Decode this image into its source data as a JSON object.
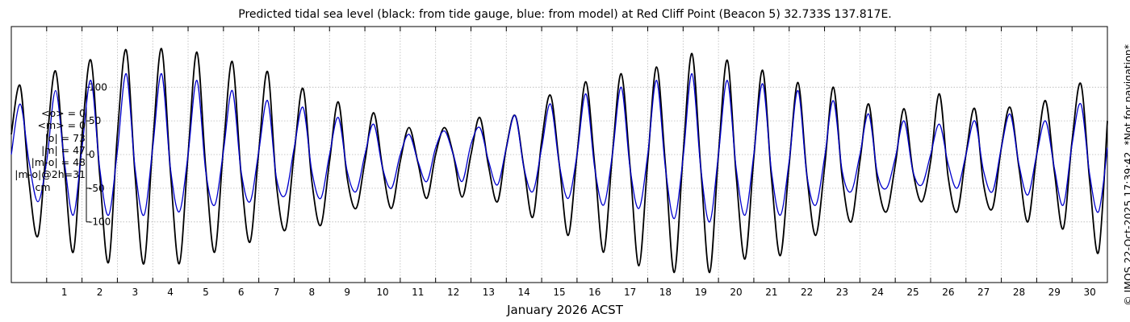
{
  "title": "Predicted tidal sea level (black: from tide gauge, blue: from model) at Red Cliff Point (Beacon 5) 32.733S 137.817E.",
  "stats": [
    "<o> = 0",
    "<m> = 0",
    "|o| = 73",
    "|m| = 47",
    "|m-o| = 48",
    "|m-o|@2h=31"
  ],
  "unit": "cm",
  "credit": "© IMOS 22-Oct-2025 17:39:42. *Not for navigation*",
  "chart_data": {
    "type": "line",
    "xlabel": "January 2026 ACST",
    "ylabel": "",
    "xlim": [
      0.0,
      31.0
    ],
    "ylim": [
      -190,
      190
    ],
    "x_ticks": [
      1,
      2,
      3,
      4,
      5,
      6,
      7,
      8,
      9,
      10,
      11,
      12,
      13,
      14,
      15,
      16,
      17,
      18,
      19,
      20,
      21,
      22,
      23,
      24,
      25,
      26,
      27,
      28,
      29,
      30
    ],
    "y_ticks": [
      -100,
      -50,
      0,
      50,
      100
    ],
    "grid": true,
    "series": [
      {
        "name": "tide gauge",
        "color": "#000000",
        "x": [
          0.0,
          0.25,
          0.5,
          0.75,
          1.0,
          1.25,
          1.5,
          1.75,
          2.0,
          2.25,
          2.5,
          2.75,
          3.0,
          3.25,
          3.5,
          3.75,
          4.0,
          4.25,
          4.5,
          4.75,
          5.0,
          5.25,
          5.5,
          5.75,
          6.0,
          6.25,
          6.5,
          6.75,
          7.0,
          7.25,
          7.5,
          7.75,
          8.0,
          8.25,
          8.5,
          8.75,
          9.0,
          9.25,
          9.5,
          9.75,
          10.0,
          10.25,
          10.5,
          10.75,
          11.0,
          11.25,
          11.5,
          11.75,
          12.0,
          12.25,
          12.5,
          12.75,
          13.0,
          13.25,
          13.5,
          13.75,
          14.0,
          14.25,
          14.5,
          14.75,
          15.0,
          15.25,
          15.5,
          15.75,
          16.0,
          16.25,
          16.5,
          16.75,
          17.0,
          17.25,
          17.5,
          17.75,
          18.0,
          18.25,
          18.5,
          18.75,
          19.0,
          19.25,
          19.5,
          19.75,
          20.0,
          20.25,
          20.5,
          20.75,
          21.0,
          21.25,
          21.5,
          21.75,
          22.0,
          22.25,
          22.5,
          22.75,
          23.0,
          23.25,
          23.5,
          23.75,
          24.0,
          24.25,
          24.5,
          24.75,
          25.0,
          25.25,
          25.5,
          25.75,
          26.0,
          26.25,
          26.5,
          26.75,
          27.0,
          27.25,
          27.5,
          27.75,
          28.0,
          28.25,
          28.5,
          28.75,
          29.0,
          29.25,
          29.5,
          29.75,
          30.0,
          30.25,
          30.5,
          30.75,
          31.0
        ],
        "values": [
          30,
          102,
          -40,
          -121,
          15,
          124,
          -18,
          -145,
          27,
          140,
          -30,
          -160,
          30,
          155,
          -30,
          -162,
          15,
          157,
          -25,
          -162,
          0,
          152,
          -20,
          -145,
          10,
          138,
          -30,
          -130,
          5,
          123,
          -45,
          -112,
          2,
          98,
          -40,
          -105,
          -10,
          78,
          -35,
          -80,
          -10,
          62,
          -20,
          -80,
          -10,
          40,
          -12,
          -65,
          0,
          40,
          0,
          -63,
          0,
          55,
          -18,
          -70,
          10,
          58,
          -20,
          -93,
          20,
          88,
          -15,
          -120,
          0,
          108,
          -15,
          -145,
          0,
          120,
          -18,
          -165,
          -10,
          130,
          -15,
          -175,
          0,
          150,
          -20,
          -175,
          0,
          140,
          -30,
          -155,
          -5,
          125,
          -35,
          -150,
          -15,
          107,
          -30,
          -120,
          -20,
          100,
          -35,
          -100,
          -10,
          75,
          -40,
          -85,
          -15,
          68,
          -25,
          -70,
          -10,
          90,
          -35,
          -85,
          0,
          68,
          -45,
          -80,
          10,
          70,
          -20,
          -100,
          0,
          80,
          -25,
          -110,
          20,
          105,
          -40,
          -145,
          50
        ]
      },
      {
        "name": "model",
        "color": "#0000cc",
        "x": [
          0.0,
          0.25,
          0.5,
          0.75,
          1.0,
          1.25,
          1.5,
          1.75,
          2.0,
          2.25,
          2.5,
          2.75,
          3.0,
          3.25,
          3.5,
          3.75,
          4.0,
          4.25,
          4.5,
          4.75,
          5.0,
          5.25,
          5.5,
          5.75,
          6.0,
          6.25,
          6.5,
          6.75,
          7.0,
          7.25,
          7.5,
          7.75,
          8.0,
          8.25,
          8.5,
          8.75,
          9.0,
          9.25,
          9.5,
          9.75,
          10.0,
          10.25,
          10.5,
          10.75,
          11.0,
          11.25,
          11.5,
          11.75,
          12.0,
          12.25,
          12.5,
          12.75,
          13.0,
          13.25,
          13.5,
          13.75,
          14.0,
          14.25,
          14.5,
          14.75,
          15.0,
          15.25,
          15.5,
          15.75,
          16.0,
          16.25,
          16.5,
          16.75,
          17.0,
          17.25,
          17.5,
          17.75,
          18.0,
          18.25,
          18.5,
          18.75,
          19.0,
          19.25,
          19.5,
          19.75,
          20.0,
          20.25,
          20.5,
          20.75,
          21.0,
          21.25,
          21.5,
          21.75,
          22.0,
          22.25,
          22.5,
          22.75,
          23.0,
          23.25,
          23.5,
          23.75,
          24.0,
          24.25,
          24.5,
          24.75,
          25.0,
          25.25,
          25.5,
          25.75,
          26.0,
          26.25,
          26.5,
          26.75,
          27.0,
          27.25,
          27.5,
          27.75,
          28.0,
          28.25,
          28.5,
          28.75,
          29.0,
          29.25,
          29.5,
          29.75,
          30.0,
          30.25,
          30.5,
          30.75,
          31.0
        ],
        "values": [
          0,
          75,
          -10,
          -70,
          -10,
          95,
          -10,
          -90,
          10,
          110,
          -20,
          -90,
          5,
          120,
          -20,
          -90,
          10,
          120,
          -20,
          -85,
          0,
          110,
          -25,
          -75,
          5,
          95,
          -25,
          -70,
          5,
          80,
          -35,
          -60,
          10,
          70,
          -25,
          -65,
          0,
          55,
          -25,
          -55,
          0,
          45,
          -20,
          -50,
          0,
          30,
          -10,
          -40,
          10,
          35,
          0,
          -40,
          15,
          40,
          -10,
          -45,
          10,
          58,
          -20,
          -55,
          10,
          75,
          -15,
          -65,
          0,
          90,
          -20,
          -75,
          0,
          100,
          -20,
          -80,
          0,
          110,
          -20,
          -95,
          -5,
          120,
          -20,
          -100,
          0,
          110,
          -20,
          -90,
          0,
          105,
          -25,
          -90,
          -10,
          95,
          -30,
          -75,
          -5,
          80,
          -25,
          -55,
          0,
          60,
          -30,
          -50,
          -5,
          50,
          -25,
          -45,
          0,
          45,
          -15,
          -50,
          0,
          50,
          -25,
          -55,
          10,
          60,
          -15,
          -60,
          0,
          50,
          -20,
          -75,
          15,
          75,
          -30,
          -85,
          10
        ]
      }
    ]
  }
}
